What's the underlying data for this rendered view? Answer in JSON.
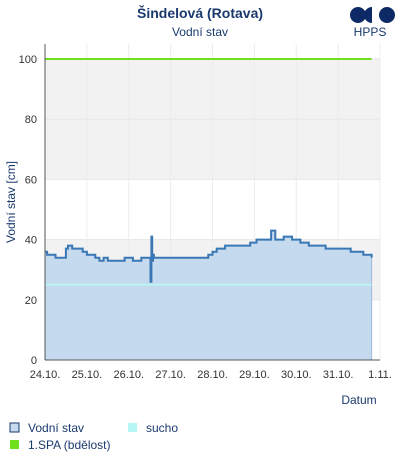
{
  "chart_data": {
    "type": "area",
    "title": "Šindelová (Rotava)",
    "subtitle": "Vodní stav",
    "xlabel": "Datum",
    "ylabel": "Vodní stav [cm]",
    "logo_text": "HPPS",
    "ylim": [
      0,
      105
    ],
    "yticks": [
      0,
      20,
      40,
      60,
      80,
      100
    ],
    "xlim": [
      "2024-10-24",
      "2024-11-01"
    ],
    "xtick_labels": [
      "24.10.",
      "25.10.",
      "26.10.",
      "27.10.",
      "28.10.",
      "29.10.",
      "30.10.",
      "31.10.",
      "1.11."
    ],
    "grid": true,
    "bands": [
      {
        "from": 20,
        "to": 40,
        "color": "#f2f2f2"
      },
      {
        "from": 60,
        "to": 80,
        "color": "#f2f2f2"
      },
      {
        "from": 80,
        "to": 100,
        "color": "#f2f2f2"
      }
    ],
    "series": [
      {
        "name": "Vodní stav",
        "color": "#3a78b5",
        "fill": "#c5d9ef",
        "x_days": [
          0,
          0.05,
          0.15,
          0.25,
          0.35,
          0.5,
          0.55,
          0.65,
          0.8,
          0.9,
          1.0,
          1.1,
          1.2,
          1.3,
          1.4,
          1.5,
          1.7,
          1.9,
          2.1,
          2.3,
          2.5,
          2.52,
          2.54,
          2.56,
          2.58,
          2.6,
          2.7,
          2.9,
          3.2,
          3.5,
          3.7,
          3.9,
          4.0,
          4.1,
          4.3,
          4.5,
          4.7,
          4.9,
          5.05,
          5.1,
          5.3,
          5.4,
          5.5,
          5.7,
          5.9,
          6.1,
          6.3,
          6.5,
          6.7,
          6.9,
          7.1,
          7.3,
          7.45,
          7.6,
          7.75,
          7.8
        ],
        "values": [
          36,
          35,
          35,
          34,
          34,
          37,
          38,
          37,
          37,
          36,
          35,
          35,
          34,
          33,
          34,
          33,
          33,
          34,
          33,
          34,
          34,
          26,
          41,
          33,
          35,
          34,
          34,
          34,
          34,
          34,
          34,
          35,
          36,
          37,
          38,
          38,
          38,
          39,
          40,
          40,
          40,
          43,
          40,
          41,
          40,
          39,
          38,
          38,
          37,
          37,
          37,
          36,
          36,
          35,
          35,
          34
        ]
      },
      {
        "name": "sucho",
        "color": "#b8f6f4",
        "values": [
          25
        ]
      },
      {
        "name": "1.SPA (bdělost)",
        "color": "#6ee01e",
        "values": [
          100
        ]
      }
    ],
    "legend": {
      "placement": "bottom",
      "items": [
        {
          "label": "Vodní stav",
          "color": "#c5d9ef",
          "border": "#1a3a6e"
        },
        {
          "label": "sucho",
          "color": "#b8f6f4",
          "border": "#b8f6f4"
        },
        {
          "label": "1.SPA (bdělost)",
          "color": "#6ee01e",
          "border": "#6ee01e"
        }
      ]
    }
  }
}
